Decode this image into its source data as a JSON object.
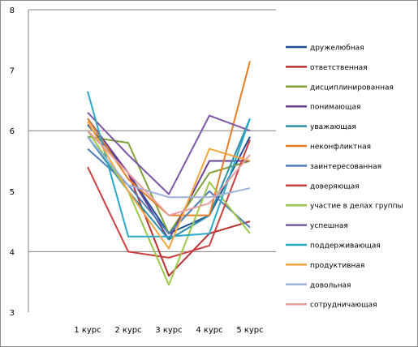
{
  "chart_data": {
    "type": "line",
    "title": "",
    "xlabel": "",
    "ylabel": "",
    "ylim": [
      3,
      8
    ],
    "y_ticks": [
      "3",
      "4",
      "5",
      "6",
      "7",
      "8"
    ],
    "grid": "horizontal major lines at 4, 6 and 8",
    "legend_position": "right",
    "categories": [
      "1 курс",
      "2 курс",
      "3 курс",
      "4 курс",
      "5 курс"
    ],
    "series": [
      {
        "name": "дружелюбная",
        "color": "#1f4e96",
        "values": [
          6.1,
          5.3,
          4.3,
          4.6,
          5.9
        ]
      },
      {
        "name": "ответственная",
        "color": "#b83232",
        "values": [
          6.0,
          5.3,
          3.6,
          4.3,
          4.5
        ]
      },
      {
        "name": "дисциплинированная",
        "color": "#7fa238",
        "values": [
          5.9,
          5.8,
          4.3,
          5.3,
          5.5
        ]
      },
      {
        "name": "понимающая",
        "color": "#6b3f94",
        "values": [
          6.2,
          5.3,
          4.2,
          5.5,
          5.5
        ]
      },
      {
        "name": "уважающая",
        "color": "#2e8fa8",
        "values": [
          5.9,
          5.0,
          4.2,
          4.6,
          6.2
        ]
      },
      {
        "name": "неконфликтная",
        "color": "#e37e26",
        "values": [
          6.2,
          5.2,
          4.6,
          4.6,
          7.15
        ]
      },
      {
        "name": "заинтересованная",
        "color": "#4e7dba",
        "values": [
          5.7,
          5.1,
          4.3,
          5.0,
          4.4
        ]
      },
      {
        "name": "доверяющая",
        "color": "#cc4040",
        "values": [
          5.4,
          4.0,
          3.9,
          4.1,
          5.85
        ]
      },
      {
        "name": "участие в делах группы",
        "color": "#9bc94a",
        "values": [
          6.0,
          5.0,
          3.45,
          5.15,
          4.3
        ]
      },
      {
        "name": "успешная",
        "color": "#7d56a8",
        "values": [
          6.3,
          5.6,
          4.95,
          6.25,
          6.0
        ]
      },
      {
        "name": "поддерживающая",
        "color": "#2aa8c8",
        "values": [
          6.65,
          4.25,
          4.25,
          4.3,
          6.2
        ]
      },
      {
        "name": "продуктивная",
        "color": "#f5a540",
        "values": [
          6.15,
          5.0,
          4.05,
          5.7,
          5.5
        ]
      },
      {
        "name": "довольная",
        "color": "#9db4d8",
        "values": [
          5.9,
          5.1,
          4.9,
          4.9,
          5.05
        ]
      },
      {
        "name": "сотрудничающая",
        "color": "#e6a0a0",
        "values": [
          6.0,
          5.3,
          4.6,
          4.8,
          5.6
        ]
      }
    ]
  }
}
